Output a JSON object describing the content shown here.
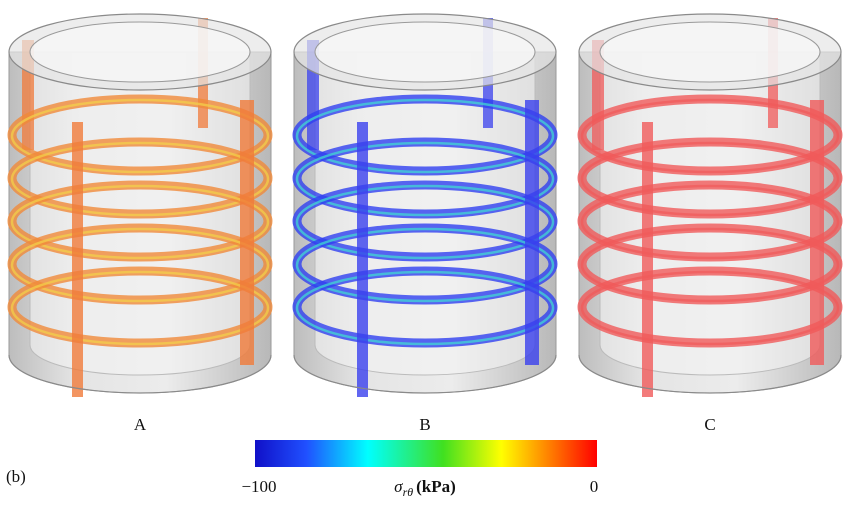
{
  "panels": [
    {
      "label": "A"
    },
    {
      "label": "B"
    },
    {
      "label": "C"
    }
  ],
  "figure_label": "(b)",
  "colorbar": {
    "min_label": "−100",
    "max_label": "0",
    "symbol": "σ",
    "subscript": "rθ",
    "unit": "(kPa)"
  }
}
